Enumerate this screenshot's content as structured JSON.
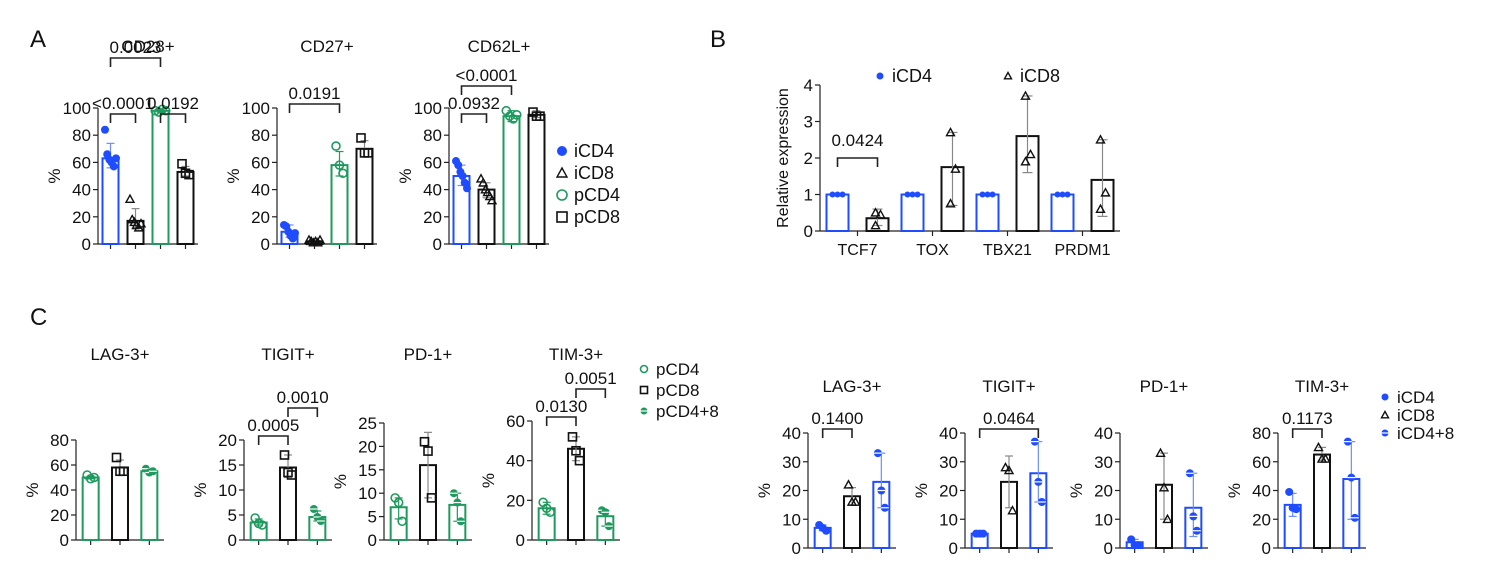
{
  "colors": {
    "blue": "#1f4cff",
    "green": "#1f9a5e",
    "black": "#111111",
    "blueLight": "#6f8cff",
    "grey": "#888888"
  },
  "panel_labels": {
    "A": "A",
    "B": "B",
    "C": "C"
  },
  "chart_data": [
    {
      "id": "A-CD28",
      "panel": "A",
      "type": "bar",
      "title": "CD28+",
      "ylabel": "%",
      "ylim": [
        0,
        100
      ],
      "yticks": [
        0,
        20,
        40,
        60,
        80,
        100
      ],
      "groups": [
        {
          "name": "iCD4",
          "color": "blue",
          "marker": "dot",
          "mean": 63,
          "err": [
            56,
            74
          ],
          "points": [
            84,
            66,
            62,
            60,
            57,
            63
          ]
        },
        {
          "name": "iCD8",
          "color": "black",
          "marker": "tri",
          "mean": 17,
          "err": [
            11,
            26
          ],
          "points": [
            33,
            18,
            16,
            14,
            12,
            15
          ]
        },
        {
          "name": "pCD4",
          "color": "green",
          "marker": "circle",
          "mean": 98,
          "err": [
            97,
            99
          ],
          "points": [
            98,
            97,
            99,
            98
          ]
        },
        {
          "name": "pCD8",
          "color": "black",
          "marker": "square",
          "mean": 53,
          "err": [
            50,
            57
          ],
          "points": [
            59,
            52,
            51
          ]
        }
      ],
      "comparisons": [
        {
          "a": 0,
          "b": 1,
          "label": "<0.0001",
          "level": 0
        },
        {
          "a": 2,
          "b": 3,
          "label": "0.0192",
          "level": 0
        },
        {
          "a": 0,
          "b": 2,
          "label": "0.0023",
          "level": 2
        }
      ]
    },
    {
      "id": "A-CD27",
      "panel": "A",
      "type": "bar",
      "title": "CD27+",
      "ylabel": "%",
      "ylim": [
        0,
        100
      ],
      "yticks": [
        0,
        20,
        40,
        60,
        80,
        100
      ],
      "groups": [
        {
          "name": "iCD4",
          "color": "blue",
          "marker": "dot",
          "mean": 9,
          "err": [
            5,
            14
          ],
          "points": [
            14,
            13,
            9,
            6,
            4,
            8
          ]
        },
        {
          "name": "iCD8",
          "color": "black",
          "marker": "tri",
          "mean": 2,
          "err": [
            1,
            3
          ],
          "points": [
            3,
            2,
            1,
            2,
            1,
            3
          ]
        },
        {
          "name": "pCD4",
          "color": "green",
          "marker": "circle",
          "mean": 58,
          "err": [
            50,
            68
          ],
          "points": [
            72,
            58,
            52
          ]
        },
        {
          "name": "pCD8",
          "color": "black",
          "marker": "square",
          "mean": 70,
          "err": [
            64,
            76
          ],
          "points": [
            78,
            67,
            67
          ]
        }
      ],
      "comparisons": [
        {
          "a": 0,
          "b": 2,
          "label": "0.0191",
          "level": 0
        }
      ]
    },
    {
      "id": "A-CD62L",
      "panel": "A",
      "type": "bar",
      "title": "CD62L+",
      "ylabel": "%",
      "ylim": [
        0,
        100
      ],
      "yticks": [
        0,
        20,
        40,
        60,
        80,
        100
      ],
      "groups": [
        {
          "name": "iCD4",
          "color": "blue",
          "marker": "dot",
          "mean": 50,
          "err": [
            43,
            58
          ],
          "points": [
            61,
            58,
            53,
            50,
            45,
            41
          ]
        },
        {
          "name": "iCD8",
          "color": "black",
          "marker": "tri",
          "mean": 40,
          "err": [
            34,
            45
          ],
          "points": [
            48,
            45,
            40,
            38,
            35,
            32
          ]
        },
        {
          "name": "pCD4",
          "color": "green",
          "marker": "circle",
          "mean": 94,
          "err": [
            90,
            98
          ],
          "points": [
            98,
            94,
            92,
            95
          ]
        },
        {
          "name": "pCD8",
          "color": "black",
          "marker": "square",
          "mean": 95,
          "err": [
            93,
            98
          ],
          "points": [
            97,
            94,
            94
          ]
        }
      ],
      "comparisons": [
        {
          "a": 0,
          "b": 1,
          "label": "0.0932",
          "level": 0
        },
        {
          "a": 0,
          "b": 2,
          "label": "<0.0001",
          "level": 1
        }
      ],
      "legend": [
        {
          "label": "iCD4",
          "marker": "dot",
          "color": "blue"
        },
        {
          "label": "iCD8",
          "marker": "tri",
          "color": "black"
        },
        {
          "label": "pCD4",
          "marker": "circle",
          "color": "green"
        },
        {
          "label": "pCD8",
          "marker": "square",
          "color": "black"
        }
      ]
    },
    {
      "id": "B-expression",
      "panel": "B",
      "type": "bar",
      "title": "",
      "ylabel": "Relative expression",
      "ylim": [
        0,
        4
      ],
      "yticks": [
        0,
        1,
        2,
        3,
        4
      ],
      "categories": [
        "TCF7",
        "TOX",
        "TBX21",
        "PRDM1"
      ],
      "series": [
        {
          "name": "iCD4",
          "color": "blue",
          "marker": "dot",
          "means": [
            1,
            1,
            1,
            1
          ],
          "errs": [
            [
              1,
              1
            ],
            [
              1,
              1
            ],
            [
              1,
              1
            ],
            [
              1,
              1
            ]
          ],
          "points": [
            [
              1,
              1,
              1
            ],
            [
              1,
              1,
              1
            ],
            [
              1,
              1,
              1
            ],
            [
              1,
              1,
              1
            ]
          ]
        },
        {
          "name": "iCD8",
          "color": "black",
          "marker": "tri",
          "means": [
            0.35,
            1.75,
            2.6,
            1.4
          ],
          "errs": [
            [
              0.15,
              0.6
            ],
            [
              0.7,
              2.7
            ],
            [
              1.6,
              3.7
            ],
            [
              0.4,
              2.5
            ]
          ],
          "points": [
            [
              0.5,
              0.45,
              0.15
            ],
            [
              2.7,
              1.7,
              0.75
            ],
            [
              3.7,
              2.1,
              1.9
            ],
            [
              2.5,
              1.05,
              0.6
            ]
          ]
        }
      ],
      "comparisons": [
        {
          "cat": 0,
          "label": "0.0424"
        }
      ],
      "legend": [
        {
          "label": "iCD4",
          "marker": "dot",
          "color": "blue"
        },
        {
          "label": "iCD8",
          "marker": "tri",
          "color": "black"
        }
      ]
    },
    {
      "id": "C-p-LAG3",
      "panel": "C",
      "type": "bar",
      "title": "LAG-3+",
      "ylabel": "%",
      "ylim": [
        0,
        80
      ],
      "yticks": [
        0,
        20,
        40,
        60,
        80
      ],
      "groups": [
        {
          "name": "pCD4",
          "color": "green",
          "marker": "circle",
          "mean": 50,
          "err": [
            49,
            51
          ],
          "points": [
            52,
            49,
            50
          ]
        },
        {
          "name": "pCD8",
          "color": "black",
          "marker": "square",
          "mean": 58,
          "err": [
            52,
            64
          ],
          "points": [
            66,
            55,
            55
          ]
        },
        {
          "name": "pCD4+8",
          "color": "green",
          "marker": "half",
          "mean": 55,
          "err": [
            53,
            57
          ],
          "points": [
            57,
            54,
            55
          ]
        }
      ],
      "comparisons": []
    },
    {
      "id": "C-p-TIGIT",
      "panel": "C",
      "type": "bar",
      "title": "TIGIT+",
      "ylabel": "%",
      "ylim": [
        0,
        20
      ],
      "yticks": [
        0,
        5,
        10,
        15,
        20
      ],
      "groups": [
        {
          "name": "pCD4",
          "color": "green",
          "marker": "circle",
          "mean": 3.5,
          "err": [
            3,
            4.2
          ],
          "points": [
            4.4,
            3.3,
            3.0
          ]
        },
        {
          "name": "pCD8",
          "color": "black",
          "marker": "square",
          "mean": 14.5,
          "err": [
            12.5,
            17
          ],
          "points": [
            17,
            13.5,
            13
          ]
        },
        {
          "name": "pCD4+8",
          "color": "green",
          "marker": "half",
          "mean": 4.6,
          "err": [
            3.8,
            5.8
          ],
          "points": [
            6.2,
            4.6,
            3.8
          ]
        }
      ],
      "comparisons": [
        {
          "a": 0,
          "b": 1,
          "label": "0.0005",
          "level": 0
        },
        {
          "a": 1,
          "b": 2,
          "label": "0.0010",
          "level": 1
        }
      ]
    },
    {
      "id": "C-p-PD1",
      "panel": "C",
      "type": "bar",
      "title": "PD-1+",
      "ylabel": "%",
      "ylim": [
        0,
        25
      ],
      "yticks": [
        0,
        5,
        10,
        15,
        20,
        25
      ],
      "groups": [
        {
          "name": "pCD4",
          "color": "green",
          "marker": "circle",
          "mean": 7,
          "err": [
            4.5,
            9
          ],
          "points": [
            9,
            8,
            4
          ]
        },
        {
          "name": "pCD8",
          "color": "black",
          "marker": "square",
          "mean": 16,
          "err": [
            9,
            23
          ],
          "points": [
            21,
            19,
            9
          ]
        },
        {
          "name": "pCD4+8",
          "color": "green",
          "marker": "half",
          "mean": 7.5,
          "err": [
            4,
            10
          ],
          "points": [
            10,
            8,
            4
          ]
        }
      ],
      "comparisons": []
    },
    {
      "id": "C-p-TIM3",
      "panel": "C",
      "type": "bar",
      "title": "TIM-3+",
      "ylabel": "%",
      "ylim": [
        0,
        60
      ],
      "yticks": [
        0,
        20,
        40,
        60
      ],
      "groups": [
        {
          "name": "pCD4",
          "color": "green",
          "marker": "circle",
          "mean": 16,
          "err": [
            13,
            19
          ],
          "points": [
            19,
            16,
            14
          ]
        },
        {
          "name": "pCD8",
          "color": "black",
          "marker": "square",
          "mean": 46,
          "err": [
            40,
            52
          ],
          "points": [
            52,
            45,
            40
          ]
        },
        {
          "name": "pCD4+8",
          "color": "green",
          "marker": "half",
          "mean": 12,
          "err": [
            7,
            15
          ],
          "points": [
            15,
            14,
            7
          ]
        }
      ],
      "comparisons": [
        {
          "a": 0,
          "b": 1,
          "label": "0.0130",
          "level": 0
        },
        {
          "a": 1,
          "b": 2,
          "label": "0.0051",
          "level": 1
        }
      ],
      "legend": [
        {
          "label": "pCD4",
          "marker": "circle",
          "color": "green"
        },
        {
          "label": "pCD8",
          "marker": "square",
          "color": "black"
        },
        {
          "label": "pCD4+8",
          "marker": "half",
          "color": "green"
        }
      ]
    },
    {
      "id": "C-i-LAG3",
      "panel": "C",
      "type": "bar",
      "title": "LAG-3+",
      "ylabel": "%",
      "ylim": [
        0,
        40
      ],
      "yticks": [
        0,
        10,
        20,
        30,
        40
      ],
      "groups": [
        {
          "name": "iCD4",
          "color": "blue",
          "marker": "dot",
          "mean": 7,
          "err": [
            6,
            8
          ],
          "points": [
            8,
            7,
            6
          ]
        },
        {
          "name": "iCD8",
          "color": "black",
          "marker": "tri",
          "mean": 18,
          "err": [
            15,
            21
          ],
          "points": [
            22,
            16,
            16
          ]
        },
        {
          "name": "iCD4+8",
          "color": "blue",
          "marker": "half",
          "mean": 23,
          "err": [
            14,
            33
          ],
          "points": [
            33,
            20,
            14
          ]
        }
      ],
      "comparisons": [
        {
          "a": 0,
          "b": 1,
          "label": "0.1400",
          "level": 0
        }
      ]
    },
    {
      "id": "C-i-TIGIT",
      "panel": "C",
      "type": "bar",
      "title": "TIGIT+",
      "ylabel": "%",
      "ylim": [
        0,
        40
      ],
      "yticks": [
        0,
        10,
        20,
        30,
        40
      ],
      "groups": [
        {
          "name": "iCD4",
          "color": "blue",
          "marker": "dot",
          "mean": 5,
          "err": [
            4.5,
            5.5
          ],
          "points": [
            5,
            5,
            5
          ]
        },
        {
          "name": "iCD8",
          "color": "black",
          "marker": "tri",
          "mean": 23,
          "err": [
            14,
            32
          ],
          "points": [
            28,
            27,
            13
          ]
        },
        {
          "name": "iCD4+8",
          "color": "blue",
          "marker": "half",
          "mean": 26,
          "err": [
            16,
            37
          ],
          "points": [
            37,
            23,
            16
          ]
        }
      ],
      "comparisons": [
        {
          "a": 0,
          "b": 2,
          "label": "0.0464",
          "level": 0
        }
      ]
    },
    {
      "id": "C-i-PD1",
      "panel": "C",
      "type": "bar",
      "title": "PD-1+",
      "ylabel": "%",
      "ylim": [
        0,
        40
      ],
      "yticks": [
        0,
        10,
        20,
        30,
        40
      ],
      "groups": [
        {
          "name": "iCD4",
          "color": "blue",
          "marker": "dot",
          "mean": 2,
          "err": [
            1,
            3
          ],
          "points": [
            3,
            1,
            1
          ]
        },
        {
          "name": "iCD8",
          "color": "black",
          "marker": "tri",
          "mean": 22,
          "err": [
            10,
            33
          ],
          "points": [
            33,
            21,
            10
          ]
        },
        {
          "name": "iCD4+8",
          "color": "blue",
          "marker": "half",
          "mean": 14,
          "err": [
            4,
            26
          ],
          "points": [
            26,
            11,
            6
          ]
        }
      ],
      "comparisons": []
    },
    {
      "id": "C-i-TIM3",
      "panel": "C",
      "type": "bar",
      "title": "TIM-3+",
      "ylabel": "%",
      "ylim": [
        0,
        80
      ],
      "yticks": [
        0,
        20,
        40,
        60,
        80
      ],
      "groups": [
        {
          "name": "iCD4",
          "color": "blue",
          "marker": "dot",
          "mean": 30,
          "err": [
            22,
            38
          ],
          "points": [
            39,
            28,
            27
          ]
        },
        {
          "name": "iCD8",
          "color": "black",
          "marker": "tri",
          "mean": 65,
          "err": [
            61,
            70
          ],
          "points": [
            70,
            62,
            62
          ]
        },
        {
          "name": "iCD4+8",
          "color": "blue",
          "marker": "half",
          "mean": 48,
          "err": [
            20,
            74
          ],
          "points": [
            74,
            49,
            21
          ]
        }
      ],
      "comparisons": [
        {
          "a": 0,
          "b": 1,
          "label": "0.1173",
          "level": 0
        }
      ],
      "legend": [
        {
          "label": "iCD4",
          "marker": "dot",
          "color": "blue"
        },
        {
          "label": "iCD8",
          "marker": "tri",
          "color": "black"
        },
        {
          "label": "iCD4+8",
          "marker": "half",
          "color": "blue"
        }
      ]
    }
  ]
}
